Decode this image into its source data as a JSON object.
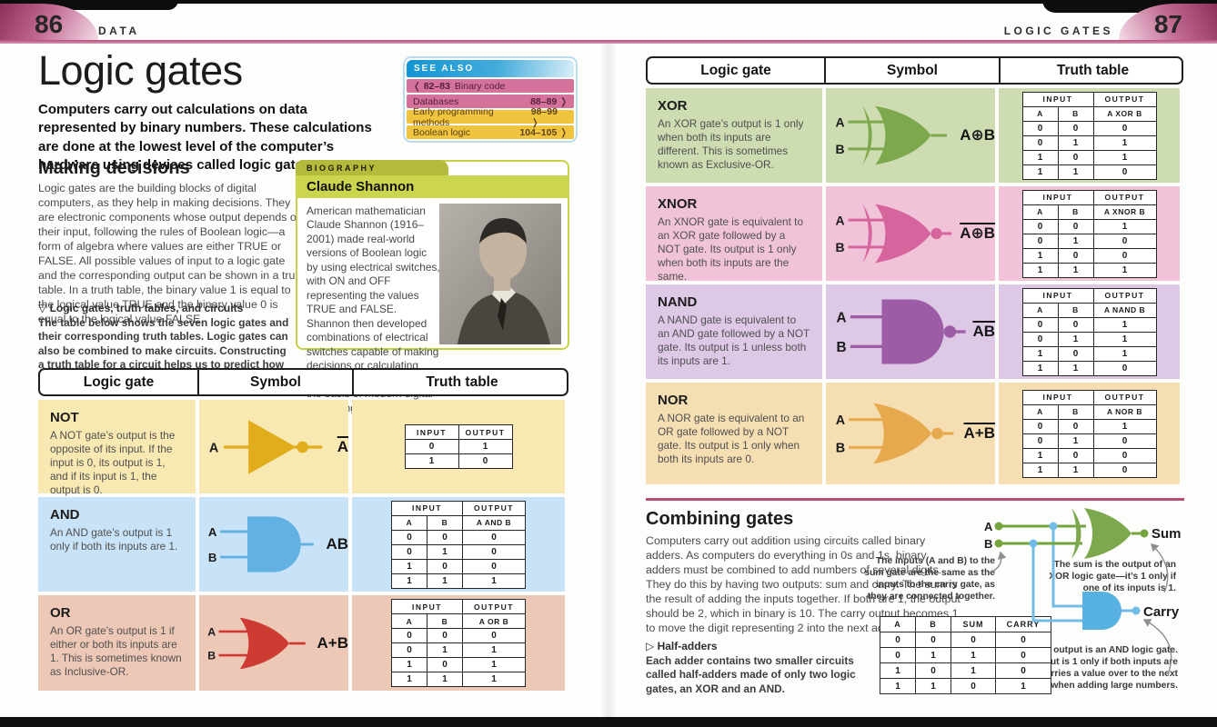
{
  "left_page": {
    "page_number": "86",
    "running_head": "DATA",
    "title": "Logic gates",
    "intro": "Computers carry out calculations on data represented by binary numbers. These calculations are done at the lowest level of the computer’s hardware using devices called logic gates.",
    "see_also": {
      "title": "SEE ALSO",
      "items": [
        {
          "prefix": "❬ 82–83",
          "label": "Binary code",
          "pages": "",
          "tone": "pink"
        },
        {
          "prefix": "",
          "label": "Databases",
          "pages": "88–89 ❭",
          "tone": "pink"
        },
        {
          "prefix": "",
          "label": "Early programming methods",
          "pages": "98–99 ❭",
          "tone": "yellow"
        },
        {
          "prefix": "",
          "label": "Boolean logic",
          "pages": "104–105 ❭",
          "tone": "yellow"
        }
      ]
    },
    "making_decisions": {
      "heading": "Making decisions",
      "body": "Logic gates are the building blocks of digital computers, as they help in making decisions. They are electronic components whose output depends on their input, following the rules of Boolean logic—a form of algebra where values are either TRUE or FALSE. All possible values of input to a logic gate and the corresponding output can be shown in a truth table. In a truth table, the binary value 1 is equal to the logical value TRUE and the binary value 0 is equal to the logical value FALSE.",
      "caption_title": "▽ Logic gates, truth tables, and circuits",
      "caption_body": "The table below shows the seven logic gates and their corresponding truth tables. Logic gates can also be combined to make circuits. Constructing a truth table for a circuit helps us to predict how it will behave."
    },
    "biography": {
      "tab": "BIOGRAPHY",
      "name": "Claude Shannon",
      "body": "American mathematician Claude Shannon (1916–2001) made real-world versions of Boolean logic by using electrical switches, with ON and OFF representing the values TRUE and FALSE. Shannon then developed combinations of electrical switches capable of making decisions or calculating numerical values—forming the basis of modern digital computing.",
      "photo": "black-and-white portrait of Claude Shannon"
    }
  },
  "right_page": {
    "page_number": "87",
    "running_head": "LOGIC GATES"
  },
  "gate_table": {
    "headers": [
      "Logic gate",
      "Symbol",
      "Truth table"
    ],
    "tt_input_header": "INPUT",
    "tt_output_header": "OUTPUT",
    "left_rows": [
      {
        "name": "NOT",
        "type": "not",
        "desc": "A NOT gate’s output is the opposite of its input. If the input is 0, its output is 1, and if its input is 1, the output is 0.",
        "bg": "#f8e8b2",
        "color": "#e2ad1d",
        "inputs": [
          "A"
        ],
        "output": {
          "text": "A",
          "overline": true
        },
        "truth_table": {
          "simple": true,
          "rows": [
            [
              "0",
              "1"
            ],
            [
              "1",
              "0"
            ]
          ]
        }
      },
      {
        "name": "AND",
        "type": "and",
        "desc": "An AND gate’s output is 1 only if both its inputs are 1.",
        "bg": "#c8e3f7",
        "color": "#63b0e2",
        "inputs": [
          "A",
          "B"
        ],
        "output": {
          "text": "AB",
          "overline": false
        },
        "truth_table": {
          "in_cols": [
            "A",
            "B"
          ],
          "out_col": "A AND B",
          "rows": [
            [
              "0",
              "0",
              "0"
            ],
            [
              "0",
              "1",
              "0"
            ],
            [
              "1",
              "0",
              "0"
            ],
            [
              "1",
              "1",
              "1"
            ]
          ]
        }
      },
      {
        "name": "OR",
        "type": "or",
        "desc": "An OR gate’s output is 1 if either or both its inputs are 1. This is sometimes known as Inclusive-OR.",
        "bg": "#edc8b6",
        "color": "#cd3b33",
        "inputs": [
          "A",
          "B"
        ],
        "output": {
          "text": "A+B",
          "overline": false
        },
        "truth_table": {
          "in_cols": [
            "A",
            "B"
          ],
          "out_col": "A OR B",
          "rows": [
            [
              "0",
              "0",
              "0"
            ],
            [
              "0",
              "1",
              "1"
            ],
            [
              "1",
              "0",
              "1"
            ],
            [
              "1",
              "1",
              "1"
            ]
          ]
        }
      }
    ],
    "right_rows": [
      {
        "name": "XOR",
        "type": "xor",
        "desc": "An XOR gate’s output is 1 only when both its inputs are different. This is sometimes known as Exclusive-OR.",
        "bg": "#cedcb2",
        "color": "#7da84e",
        "inputs": [
          "A",
          "B"
        ],
        "output": {
          "text": "A⊕B",
          "overline": false
        },
        "truth_table": {
          "in_cols": [
            "A",
            "B"
          ],
          "out_col": "A XOR B",
          "rows": [
            [
              "0",
              "0",
              "0"
            ],
            [
              "0",
              "1",
              "1"
            ],
            [
              "1",
              "0",
              "1"
            ],
            [
              "1",
              "1",
              "0"
            ]
          ]
        }
      },
      {
        "name": "XNOR",
        "type": "xnor",
        "desc": "An XNOR gate is equivalent to an XOR gate followed by a NOT gate. Its output is 1 only when both its inputs are the same.",
        "bg": "#f1c3d8",
        "color": "#d6659e",
        "inputs": [
          "A",
          "B"
        ],
        "output": {
          "text": "A⊕B",
          "overline": true
        },
        "truth_table": {
          "in_cols": [
            "A",
            "B"
          ],
          "out_col": "A XNOR B",
          "rows": [
            [
              "0",
              "0",
              "1"
            ],
            [
              "0",
              "1",
              "0"
            ],
            [
              "1",
              "0",
              "0"
            ],
            [
              "1",
              "1",
              "1"
            ]
          ]
        }
      },
      {
        "name": "NAND",
        "type": "nand",
        "desc": "A NAND gate is equivalent to an AND gate followed by a NOT gate. Its output is 1 unless both its inputs are 1.",
        "bg": "#ddc8e6",
        "color": "#9c5ca6",
        "inputs": [
          "A",
          "B"
        ],
        "output": {
          "text": "AB",
          "overline": true
        },
        "truth_table": {
          "in_cols": [
            "A",
            "B"
          ],
          "out_col": "A NAND B",
          "rows": [
            [
              "0",
              "0",
              "1"
            ],
            [
              "0",
              "1",
              "1"
            ],
            [
              "1",
              "0",
              "1"
            ],
            [
              "1",
              "1",
              "0"
            ]
          ]
        }
      },
      {
        "name": "NOR",
        "type": "nor",
        "desc": "A NOR gate is equivalent to an OR gate followed by a NOT gate. Its output is 1 only when both its inputs are 0.",
        "bg": "#f6deb3",
        "color": "#e6a94e",
        "inputs": [
          "A",
          "B"
        ],
        "output": {
          "text": "A+B",
          "overline": true
        },
        "truth_table": {
          "in_cols": [
            "A",
            "B"
          ],
          "out_col": "A NOR B",
          "rows": [
            [
              "0",
              "0",
              "1"
            ],
            [
              "0",
              "1",
              "0"
            ],
            [
              "1",
              "0",
              "0"
            ],
            [
              "1",
              "1",
              "0"
            ]
          ]
        }
      }
    ]
  },
  "combining": {
    "heading": "Combining gates",
    "body": "Computers carry out addition using circuits called binary adders. As computers do everything in 0s and 1s, binary adders must be combined to add numbers of several digits. They do this by having two outputs: sum and carry. The sum is the result of adding the inputs together. If both are 1, the output should be 2, which in binary is 10. The carry output becomes 1 to move the digit representing 2 into the next adder along.",
    "half_adders_title": "▷ Half-adders",
    "half_adders_body": "Each adder contains two smaller circuits called half-adders made of only two logic gates, an XOR and an AND.",
    "annotation_inputs": "The inputs (A and B) to the sum gate are the same as the inputs to the carry gate, as they are connected together.",
    "annotation_sum": "The sum is the output of an XOR logic gate—it’s 1 only if one of its inputs is 1.",
    "annotation_carry": "The carry output is an AND logic gate. Its output is 1 only if both inputs are 1. It carries a value over to the next adder when adding large numbers.",
    "diagram": {
      "input_a": "A",
      "input_b": "B",
      "sum_label": "Sum",
      "carry_label": "Carry",
      "xor_color": "#7da84e",
      "and_color": "#58b1e3",
      "wire_green": "#74a53d",
      "wire_blue": "#72bce8"
    },
    "adder_truth_table": {
      "headers": [
        "A",
        "B",
        "SUM",
        "CARRY"
      ],
      "rows": [
        [
          "0",
          "0",
          "0",
          "0"
        ],
        [
          "0",
          "1",
          "1",
          "0"
        ],
        [
          "1",
          "0",
          "1",
          "0"
        ],
        [
          "1",
          "1",
          "0",
          "1"
        ]
      ]
    }
  }
}
